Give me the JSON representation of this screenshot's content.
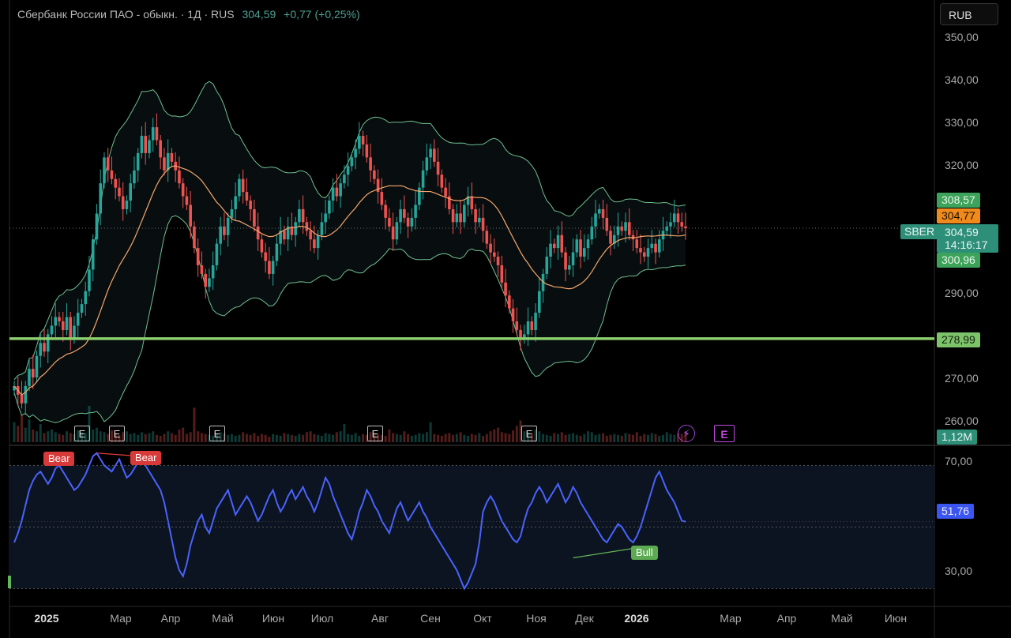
{
  "header": {
    "instrument": "Сбербанк России ПАО - обыкн. · 1Д · RUS",
    "price": "304,59",
    "change": "+0,77 (+0,25%)"
  },
  "currency_button": "RUB",
  "price_axis": [
    "350,00",
    "340,00",
    "330,00",
    "320,00",
    "290,00",
    "270,00",
    "260,00"
  ],
  "rsi_axis": [
    "70,00",
    "30,00"
  ],
  "time_axis": [
    {
      "label": "2025",
      "bold": true
    },
    {
      "label": "Мар"
    },
    {
      "label": "Апр"
    },
    {
      "label": "Май"
    },
    {
      "label": "Июн"
    },
    {
      "label": "Июл"
    },
    {
      "label": "Авг"
    },
    {
      "label": "Сен"
    },
    {
      "label": "Окт"
    },
    {
      "label": "Ноя"
    },
    {
      "label": "Дек"
    },
    {
      "label": "2026",
      "bold": true
    },
    {
      "label": "Мар"
    },
    {
      "label": "Апр"
    },
    {
      "label": "Май"
    },
    {
      "label": "Июн"
    }
  ],
  "price_tags": {
    "upper_band": "308,57",
    "middle_band": "304,77",
    "symbol": "SBER",
    "last_price": "304,59",
    "countdown": "14:16:17",
    "lower_band": "300,96",
    "support_line": "278,99",
    "volume": "1,12M",
    "rsi": "51,76"
  },
  "divergence_labels": [
    "Bear",
    "Bear",
    "Bull"
  ],
  "event_marker": "E",
  "colors": {
    "up": "#26a69a",
    "down": "#ef5350",
    "band": "#6fbf8f",
    "ma": "#f5a66b",
    "support": "#8ccf6e",
    "rsi": "#4a62ff",
    "bear": "#e03c3c",
    "bull": "#63b55a"
  },
  "chart_data": {
    "type": "candlestick",
    "price_ylim": [
      255,
      352
    ],
    "support_level": 278.99,
    "rsi_levels": [
      30,
      70
    ],
    "rsi_last": 51.76,
    "rsi_ylim": [
      25,
      76
    ],
    "closes": [
      268,
      266,
      264,
      268,
      272,
      270,
      275,
      278,
      276,
      280,
      282,
      284,
      283,
      281,
      284,
      279,
      282,
      285,
      287,
      290,
      295,
      302,
      308,
      315,
      321,
      318,
      316,
      314,
      312,
      309,
      311,
      315,
      318,
      322,
      326,
      322,
      325,
      328,
      325,
      321,
      318,
      322,
      320,
      318,
      315,
      312,
      310,
      305,
      300,
      296,
      294,
      291,
      293,
      296,
      301,
      305,
      303,
      307,
      309,
      312,
      316,
      313,
      311,
      309,
      305,
      302,
      299,
      297,
      294,
      297,
      301,
      304,
      302,
      305,
      303,
      306,
      309,
      306,
      304,
      302,
      300,
      303,
      306,
      308,
      311,
      314,
      312,
      315,
      317,
      319,
      321,
      323,
      326,
      324,
      321,
      318,
      316,
      313,
      310,
      307,
      305,
      302,
      306,
      309,
      307,
      305,
      307,
      310,
      314,
      318,
      321,
      323,
      320,
      317,
      314,
      312,
      309,
      306,
      308,
      306,
      310,
      312,
      309,
      306,
      307,
      304,
      301,
      299,
      298,
      296,
      292,
      289,
      286,
      283,
      281,
      279,
      280,
      283,
      281,
      285,
      290,
      294,
      298,
      301,
      300,
      303,
      299,
      295,
      296,
      299,
      302,
      298,
      300,
      302,
      305,
      308,
      309,
      307,
      304,
      301,
      303,
      305,
      304,
      306,
      303,
      302,
      300,
      299,
      298,
      300,
      301,
      299,
      302,
      304,
      305,
      306,
      308,
      306,
      305,
      304.59
    ],
    "volumes": [
      22,
      18,
      30,
      16,
      25,
      14,
      12,
      20,
      10,
      12,
      14,
      11,
      9,
      8,
      12,
      10,
      9,
      13,
      11,
      10,
      40,
      14,
      16,
      12,
      11,
      9,
      13,
      10,
      8,
      11,
      12,
      9,
      10,
      8,
      11,
      9,
      10,
      12,
      8,
      7,
      9,
      12,
      10,
      8,
      14,
      16,
      9,
      11,
      38,
      12,
      10,
      9,
      8,
      7,
      9,
      11,
      10,
      8,
      9,
      7,
      8,
      11,
      9,
      8,
      10,
      7,
      9,
      8,
      6,
      9,
      8,
      7,
      10,
      9,
      8,
      7,
      9,
      8,
      11,
      12,
      9,
      8,
      7,
      10,
      9,
      8,
      11,
      12,
      20,
      9,
      8,
      10,
      7,
      9,
      8,
      11,
      10,
      9,
      8,
      7,
      14,
      10,
      9,
      8,
      12,
      9,
      7,
      8,
      10,
      9,
      11,
      22,
      9,
      8,
      7,
      9,
      10,
      8,
      9,
      11,
      8,
      7,
      9,
      8,
      10,
      7,
      9,
      12,
      14,
      16,
      11,
      10,
      9,
      13,
      18,
      24,
      12,
      11,
      10,
      14,
      12,
      9,
      8,
      7,
      10,
      9,
      11,
      8,
      9,
      10,
      8,
      7,
      9,
      12,
      11,
      8,
      9,
      10,
      7,
      8,
      9,
      8,
      7,
      10,
      9,
      8,
      11,
      7,
      9,
      8,
      10,
      9,
      7,
      8,
      11,
      9,
      8,
      10,
      9,
      12
    ],
    "rsi": [
      45,
      48,
      52,
      57,
      62,
      65,
      67,
      68,
      66,
      64,
      66,
      69,
      70,
      68,
      66,
      64,
      62,
      63,
      65,
      67,
      70,
      73,
      74,
      72,
      70,
      69,
      68,
      70,
      72,
      69,
      66,
      67,
      69,
      71,
      72,
      70,
      68,
      66,
      64,
      62,
      58,
      52,
      46,
      40,
      36,
      34,
      38,
      44,
      48,
      52,
      54,
      50,
      48,
      52,
      56,
      58,
      60,
      62,
      58,
      54,
      56,
      58,
      60,
      58,
      55,
      52,
      54,
      57,
      60,
      62,
      58,
      55,
      57,
      60,
      62,
      59,
      61,
      63,
      60,
      58,
      55,
      58,
      62,
      66,
      64,
      60,
      57,
      54,
      51,
      48,
      46,
      50,
      55,
      58,
      62,
      60,
      57,
      55,
      52,
      50,
      48,
      52,
      56,
      58,
      55,
      52,
      54,
      56,
      58,
      55,
      53,
      50,
      48,
      46,
      44,
      42,
      40,
      38,
      36,
      33,
      30,
      32,
      35,
      38,
      45,
      55,
      58,
      60,
      58,
      55,
      52,
      50,
      48,
      46,
      45,
      47,
      52,
      56,
      58,
      61,
      63,
      61,
      58,
      60,
      62,
      64,
      61,
      58,
      60,
      63,
      61,
      58,
      56,
      54,
      52,
      50,
      48,
      46,
      45,
      47,
      49,
      51,
      50,
      48,
      46,
      45,
      47,
      50,
      54,
      58,
      62,
      66,
      68,
      65,
      62,
      60,
      58,
      55,
      52,
      51.76
    ]
  }
}
